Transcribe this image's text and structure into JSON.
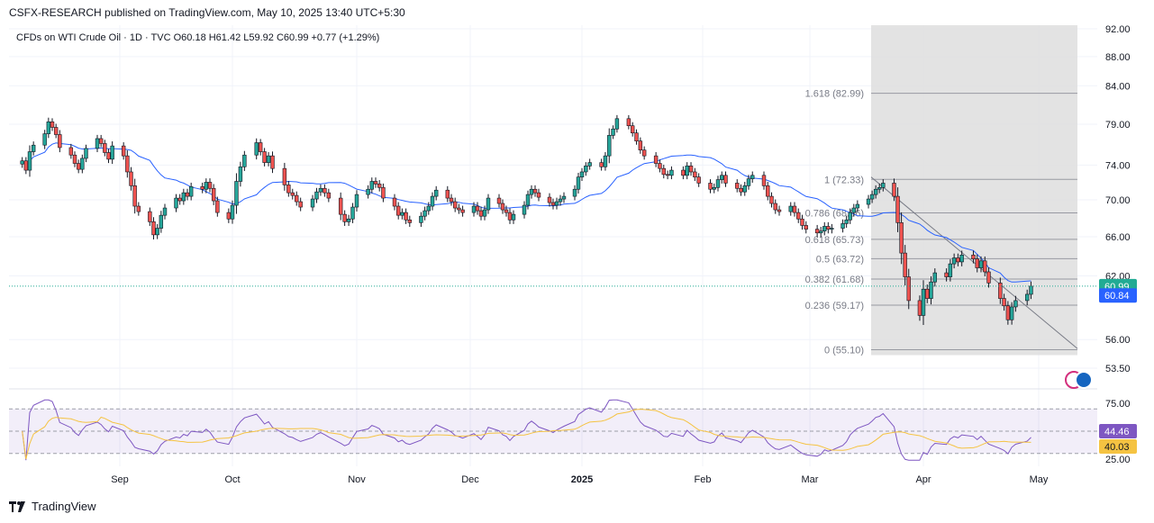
{
  "header": {
    "published": "CSFX-RESEARCH published on TradingView.com, May 10, 2025 13:40 UTC+5:30",
    "legend": "CFDs on WTI Crude Oil · 1D · TVC O60.18 H61.42 L59.92 C60.99 +0.77 (+1.29%)"
  },
  "footer": {
    "brand": "TradingView"
  },
  "colors": {
    "up": "#26a69a",
    "down": "#ef5350",
    "ma": "#2962ff",
    "last_price": "#22ab94",
    "ma_badge": "#2962ff",
    "rsi": "#7e57c2",
    "rsi_ma": "#f5c342",
    "rsi_badge": "#7e57c2",
    "rsi_ma_badge": "#f5c342",
    "shade": "#e0e0e0"
  },
  "chart_data": {
    "type": "candlestick",
    "symbol": "CFDs on WTI Crude Oil",
    "interval": "1D",
    "source": "TVC",
    "price_axis": {
      "ticks": [
        92.0,
        88.0,
        84.0,
        79.0,
        74.0,
        70.0,
        66.0,
        62.0,
        56.0,
        53.5
      ],
      "tick_labels": [
        "92.00",
        "88.00",
        "84.00",
        "79.00",
        "74.00",
        "70.00",
        "66.00",
        "62.00",
        "56.00",
        "53.50"
      ],
      "scale": "log"
    },
    "time_axis": {
      "labels": [
        "Sep",
        "Oct",
        "Nov",
        "Dec",
        "2025",
        "Feb",
        "Mar",
        "Apr",
        "May"
      ],
      "label_dates": [
        "2024-09-01",
        "2024-10-01",
        "2024-11-01",
        "2024-12-01",
        "2025-01-01",
        "2025-02-01",
        "2025-03-01",
        "2025-04-01",
        "2025-05-01"
      ]
    },
    "last_price": {
      "value": 60.99,
      "label": "60.99"
    },
    "ma_value": {
      "value": 60.84,
      "label": "60.84"
    },
    "closes": [
      74.5,
      73.4,
      75.6,
      76.4,
      77.8,
      79.3,
      78.6,
      77.7,
      76.1,
      75.2,
      74.2,
      73.5,
      74.8,
      76.0,
      77.2,
      76.6,
      75.5,
      74.7,
      76.3,
      75.1,
      73.2,
      71.6,
      69.3,
      68.7,
      67.6,
      66.2,
      66.9,
      68.3,
      69.1,
      70.2,
      69.9,
      70.8,
      70.4,
      71.5,
      71.2,
      72.0,
      71.3,
      69.9,
      68.6,
      67.9,
      69.4,
      72.1,
      73.8,
      75.2,
      76.7,
      75.6,
      74.3,
      75.1,
      73.6,
      71.7,
      70.8,
      70.5,
      69.8,
      69.2,
      70.1,
      70.9,
      71.3,
      70.8,
      70.2,
      68.4,
      67.6,
      67.9,
      69.2,
      70.6,
      71.2,
      72.1,
      71.8,
      71.4,
      70.2,
      69.3,
      68.3,
      68.6,
      67.8,
      67.5,
      68.2,
      68.8,
      69.3,
      70.4,
      71.1,
      70.2,
      69.8,
      69.1,
      68.9,
      68.6,
      69.3,
      68.8,
      68.2,
      68.9,
      70.2,
      69.6,
      68.9,
      68.6,
      67.8,
      68.4,
      69.4,
      70.6,
      71.2,
      70.8,
      70.3,
      69.7,
      69.4,
      69.8,
      70.1,
      70.4,
      71.2,
      72.6,
      73.2,
      73.9,
      74.3,
      73.8,
      75.1,
      77.6,
      78.4,
      79.7,
      78.8,
      77.9,
      76.9,
      75.8,
      75.1,
      74.2,
      73.6,
      72.9,
      72.8,
      73.4,
      72.8,
      73.9,
      73.2,
      72.6,
      71.9,
      71.2,
      71.4,
      72.3,
      72.8,
      71.9,
      71.3,
      70.9,
      71.6,
      72.4,
      72.8,
      71.6,
      70.4,
      69.6,
      68.9,
      68.7,
      69.3,
      68.6,
      67.9,
      67.2,
      66.8,
      66.4,
      66.6,
      67.1,
      66.8,
      66.9,
      67.4,
      67.8,
      68.6,
      69.1,
      69.5,
      70.1,
      70.6,
      71.2,
      71.4,
      71.9,
      70.4,
      67.5,
      64.3,
      61.9,
      59.6,
      58.2,
      60.7,
      59.8,
      61.4,
      62.3,
      61.9,
      63.2,
      63.8,
      63.4,
      64.1,
      63.7,
      62.8,
      63.5,
      62.4,
      61.3,
      59.8,
      59.1,
      57.8,
      59.0,
      59.6,
      60.2,
      60.99
    ]
  }
}
